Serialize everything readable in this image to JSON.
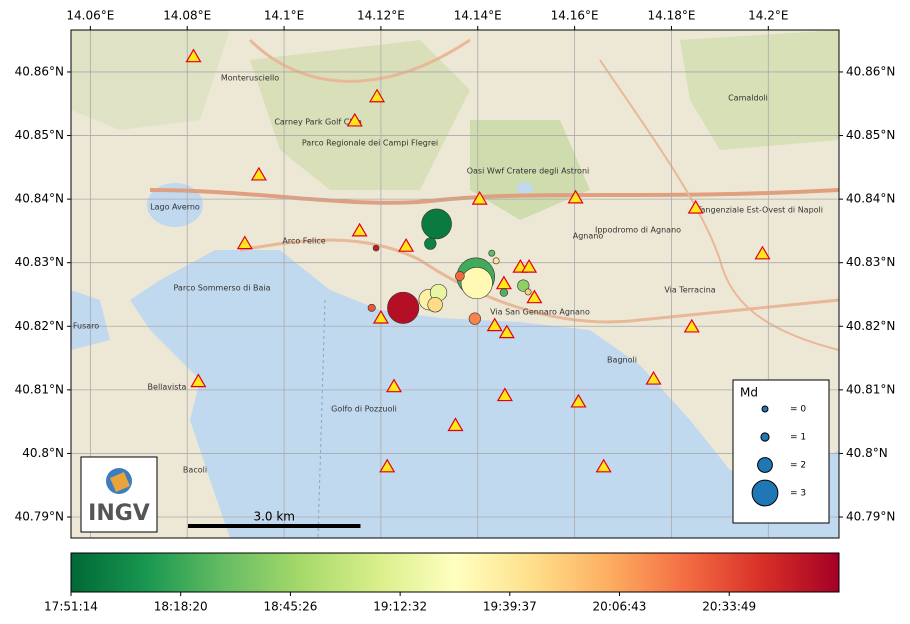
{
  "chart_data": {
    "type": "seismic-map",
    "xlim": [
      14.056,
      14.2146
    ],
    "ylim": [
      40.7867,
      40.8666
    ],
    "xticks": [
      {
        "value": 14.06,
        "label": "14.06°E"
      },
      {
        "value": 14.08,
        "label": "14.08°E"
      },
      {
        "value": 14.1,
        "label": "14.1°E"
      },
      {
        "value": 14.12,
        "label": "14.12°E"
      },
      {
        "value": 14.14,
        "label": "14.14°E"
      },
      {
        "value": 14.16,
        "label": "14.16°E"
      },
      {
        "value": 14.18,
        "label": "14.18°E"
      },
      {
        "value": 14.2,
        "label": "14.2°E"
      }
    ],
    "yticks": [
      {
        "value": 40.79,
        "label": "40.79°N"
      },
      {
        "value": 40.8,
        "label": "40.8°N"
      },
      {
        "value": 40.81,
        "label": "40.81°N"
      },
      {
        "value": 40.82,
        "label": "40.82°N"
      },
      {
        "value": 40.83,
        "label": "40.83°N"
      },
      {
        "value": 40.84,
        "label": "40.84°N"
      },
      {
        "value": 40.85,
        "label": "40.85°N"
      },
      {
        "value": 40.86,
        "label": "40.86°N"
      }
    ],
    "grid": true,
    "stations": {
      "color": "#ffe81a",
      "edge": "#e0001b",
      "x": [
        14.0813,
        14.1192,
        14.1146,
        14.0948,
        14.1404,
        14.1602,
        14.185,
        14.1156,
        14.1252,
        14.0919,
        14.1988,
        14.1488,
        14.1506,
        14.1454,
        14.1517,
        14.12,
        14.1435,
        14.146,
        14.1842,
        14.0823,
        14.1227,
        14.1763,
        14.1456,
        14.1608,
        14.1354,
        14.1213,
        14.166
      ],
      "y": [
        40.8624,
        40.8561,
        40.8523,
        40.8438,
        40.84,
        40.8402,
        40.8386,
        40.835,
        40.8326,
        40.833,
        40.8314,
        40.8293,
        40.8293,
        40.8267,
        40.8245,
        40.8213,
        40.8201,
        40.819,
        40.8199,
        40.8113,
        40.8105,
        40.8117,
        40.8091,
        40.8081,
        40.8044,
        40.7979,
        40.7979
      ]
    },
    "events": {
      "x": [
        14.1315,
        14.1302,
        14.119,
        14.1429,
        14.1438,
        14.1396,
        14.1398,
        14.1363,
        14.1494,
        14.1454,
        14.1504,
        14.1319,
        14.13,
        14.1312,
        14.1246,
        14.1181,
        14.1394
      ],
      "y": [
        40.8361,
        40.833,
        40.8323,
        40.8315,
        40.8303,
        40.8278,
        40.8268,
        40.8279,
        40.8264,
        40.8253,
        40.8254,
        40.8253,
        40.8242,
        40.8234,
        40.8229,
        40.8229,
        40.8212
      ],
      "md": [
        3.3,
        1.6,
        0,
        0.3,
        0.3,
        3.8,
        3.4,
        1.2,
        1.6,
        0.9,
        0.3,
        2.2,
        2.6,
        2.0,
        3.4,
        0.8,
        1.6
      ],
      "time": [
        64700,
        64900,
        75000,
        66500,
        71000,
        66000,
        70200,
        73500,
        67300,
        66200,
        71500,
        69300,
        70500,
        71200,
        75300,
        73800,
        73000
      ]
    },
    "colormap": [
      "#006837",
      "#1a9850",
      "#66bd63",
      "#a6d96a",
      "#d9ef8b",
      "#ffffbf",
      "#fee08b",
      "#fdae61",
      "#f46d43",
      "#d73027",
      "#a50026"
    ],
    "clim": [
      64274,
      75656
    ],
    "cticks": [
      {
        "value": 64274,
        "label": "17:51:14"
      },
      {
        "value": 65900,
        "label": "18:18:20"
      },
      {
        "value": 67526,
        "label": "18:45:26"
      },
      {
        "value": 69152,
        "label": "19:12:32"
      },
      {
        "value": 70777,
        "label": "19:39:37"
      },
      {
        "value": 72403,
        "label": "20:06:43"
      },
      {
        "value": 74029,
        "label": "20:33:49"
      }
    ],
    "legend": {
      "title": "Md",
      "position": "lower right",
      "entries": [
        {
          "value": 0,
          "label": "= 0"
        },
        {
          "value": 1,
          "label": "= 1"
        },
        {
          "value": 2,
          "label": "= 2"
        },
        {
          "value": 3,
          "label": "= 3"
        }
      ],
      "color": "#1f77b4"
    },
    "scale_bar": {
      "km": 3,
      "label": "3.0 km"
    },
    "logo": "INGV",
    "place_labels": [
      "Monterusciello",
      "Arco Felice",
      "Agnano",
      "Bagnoli",
      "Bellavista",
      "Bacoli",
      "Golfo di Pozzuoli",
      "Lago Averno",
      "Oasi Wwf Cratere degli Astroni",
      "Parco Regionale dei Campi Flegrei",
      "Ippodromo di Agnano",
      "Camaldoli",
      "Carney Park Golf Club",
      "Parco Sommerso di Baia",
      "Fusaro",
      "Via Terracina",
      "Tangenziale Est-Ovest di Napoli",
      "Via San Gennaro Agnano"
    ]
  }
}
